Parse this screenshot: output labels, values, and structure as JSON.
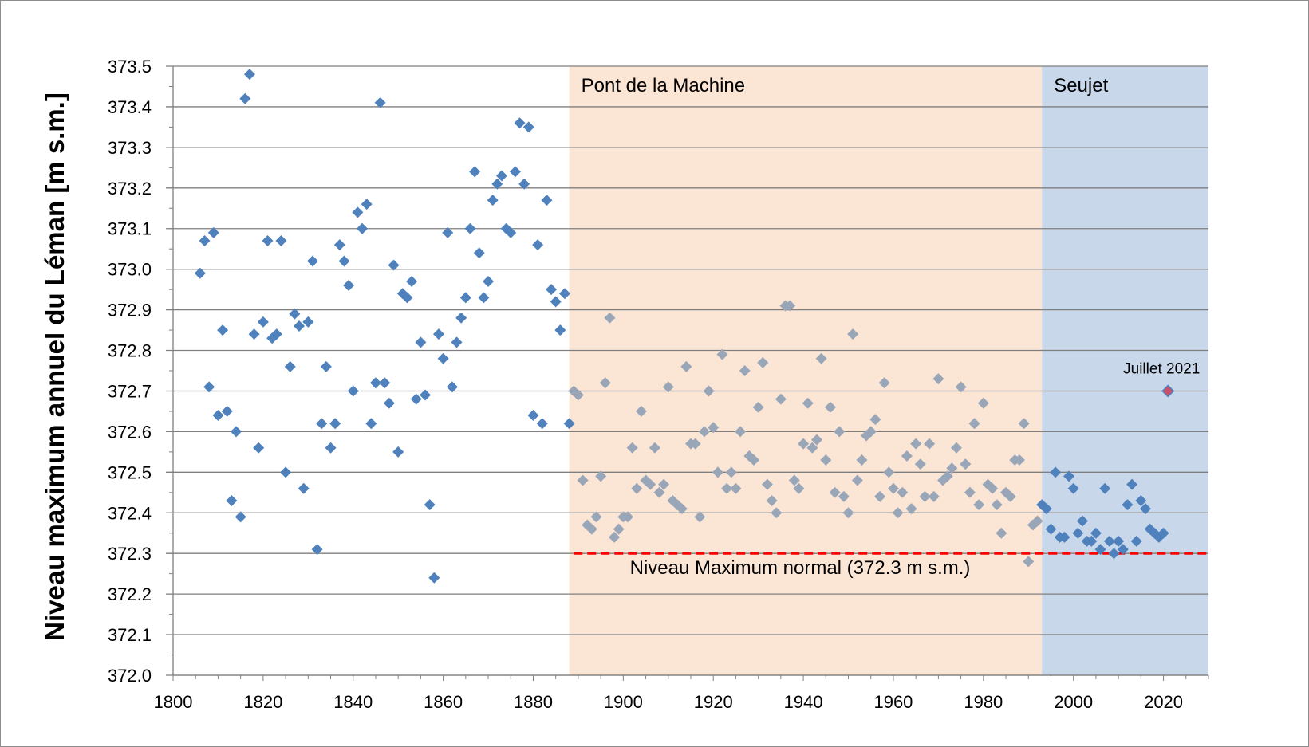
{
  "chart_data": {
    "type": "scatter",
    "title": "",
    "xlabel": "",
    "ylabel": "Niveau maximum annuel du Léman [m s.m.]",
    "xlim": [
      1800,
      2030
    ],
    "ylim": [
      372.0,
      373.5
    ],
    "x_ticks": [
      "1800",
      "1820",
      "1840",
      "1860",
      "1880",
      "1900",
      "1920",
      "1940",
      "1960",
      "1980",
      "2000",
      "2020"
    ],
    "y_ticks": [
      "372.0",
      "372.1",
      "372.2",
      "372.3",
      "372.4",
      "372.5",
      "372.6",
      "372.7",
      "372.8",
      "372.9",
      "373.0",
      "373.1",
      "373.2",
      "373.3",
      "373.4",
      "373.5"
    ],
    "grid": "horizontal",
    "regions": [
      {
        "label": "Pont de la Machine",
        "x_start": 1888,
        "x_end": 1993,
        "color": "#fbe5d5"
      },
      {
        "label": "Seujet",
        "x_start": 1993,
        "x_end": 2030,
        "color": "#c9d7ea"
      }
    ],
    "reference_line": {
      "y": 372.3,
      "label": "Niveau Maximum normal (372.3 m s.m.)",
      "color": "#ff0000",
      "x_start": 1889,
      "x_end": 2030
    },
    "annotation": {
      "text": "Juillet 2021",
      "x": 2021,
      "y": 372.7
    },
    "series": [
      {
        "color": "#4f81bd",
        "points": [
          [
            1806,
            372.99
          ],
          [
            1807,
            373.07
          ],
          [
            1808,
            372.71
          ],
          [
            1809,
            373.09
          ],
          [
            1810,
            372.64
          ],
          [
            1811,
            372.85
          ],
          [
            1812,
            372.65
          ],
          [
            1813,
            372.43
          ],
          [
            1814,
            372.6
          ],
          [
            1815,
            372.39
          ],
          [
            1816,
            373.42
          ],
          [
            1817,
            373.48
          ],
          [
            1818,
            372.84
          ],
          [
            1819,
            372.56
          ],
          [
            1820,
            372.87
          ],
          [
            1821,
            373.07
          ],
          [
            1822,
            372.83
          ],
          [
            1823,
            372.84
          ],
          [
            1824,
            373.07
          ],
          [
            1825,
            372.5
          ],
          [
            1826,
            372.76
          ],
          [
            1827,
            372.89
          ],
          [
            1828,
            372.86
          ],
          [
            1829,
            372.46
          ],
          [
            1830,
            372.87
          ],
          [
            1831,
            373.02
          ],
          [
            1832,
            372.31
          ],
          [
            1833,
            372.62
          ],
          [
            1834,
            372.76
          ],
          [
            1835,
            372.56
          ],
          [
            1836,
            372.62
          ],
          [
            1837,
            373.06
          ],
          [
            1838,
            373.02
          ],
          [
            1839,
            372.96
          ],
          [
            1840,
            372.7
          ],
          [
            1841,
            373.14
          ],
          [
            1842,
            373.1
          ],
          [
            1843,
            373.16
          ],
          [
            1844,
            372.62
          ],
          [
            1845,
            372.72
          ],
          [
            1846,
            373.41
          ],
          [
            1847,
            372.72
          ],
          [
            1848,
            372.67
          ],
          [
            1849,
            373.01
          ],
          [
            1850,
            372.55
          ],
          [
            1851,
            372.94
          ],
          [
            1852,
            372.93
          ],
          [
            1853,
            372.97
          ],
          [
            1854,
            372.68
          ],
          [
            1855,
            372.82
          ],
          [
            1856,
            372.69
          ],
          [
            1857,
            372.42
          ],
          [
            1858,
            372.24
          ],
          [
            1859,
            372.84
          ],
          [
            1860,
            372.78
          ],
          [
            1861,
            373.09
          ],
          [
            1862,
            372.71
          ],
          [
            1863,
            372.82
          ],
          [
            1864,
            372.88
          ],
          [
            1865,
            372.93
          ],
          [
            1866,
            373.1
          ],
          [
            1867,
            373.24
          ],
          [
            1868,
            373.04
          ],
          [
            1869,
            372.93
          ],
          [
            1870,
            372.97
          ],
          [
            1871,
            373.17
          ],
          [
            1872,
            373.21
          ],
          [
            1873,
            373.23
          ],
          [
            1874,
            373.1
          ],
          [
            1875,
            373.09
          ],
          [
            1876,
            373.24
          ],
          [
            1877,
            373.36
          ],
          [
            1878,
            373.21
          ],
          [
            1879,
            373.35
          ],
          [
            1880,
            372.64
          ],
          [
            1881,
            373.06
          ],
          [
            1882,
            372.62
          ],
          [
            1883,
            373.17
          ],
          [
            1884,
            372.95
          ],
          [
            1885,
            372.92
          ],
          [
            1886,
            372.85
          ],
          [
            1887,
            372.94
          ],
          [
            1888,
            372.62
          ]
        ]
      },
      {
        "color": "#98a6b8",
        "points": [
          [
            1889,
            372.7
          ],
          [
            1890,
            372.69
          ],
          [
            1891,
            372.48
          ],
          [
            1892,
            372.37
          ],
          [
            1893,
            372.36
          ],
          [
            1894,
            372.39
          ],
          [
            1895,
            372.49
          ],
          [
            1896,
            372.72
          ],
          [
            1897,
            372.88
          ],
          [
            1898,
            372.34
          ],
          [
            1899,
            372.36
          ],
          [
            1900,
            372.39
          ],
          [
            1901,
            372.39
          ],
          [
            1902,
            372.56
          ],
          [
            1903,
            372.46
          ],
          [
            1904,
            372.65
          ],
          [
            1905,
            372.48
          ],
          [
            1906,
            372.47
          ],
          [
            1907,
            372.56
          ],
          [
            1908,
            372.45
          ],
          [
            1909,
            372.47
          ],
          [
            1910,
            372.71
          ],
          [
            1911,
            372.43
          ],
          [
            1912,
            372.42
          ],
          [
            1913,
            372.41
          ],
          [
            1914,
            372.76
          ],
          [
            1915,
            372.57
          ],
          [
            1916,
            372.57
          ],
          [
            1917,
            372.39
          ],
          [
            1918,
            372.6
          ],
          [
            1919,
            372.7
          ],
          [
            1920,
            372.61
          ],
          [
            1921,
            372.5
          ],
          [
            1922,
            372.79
          ],
          [
            1923,
            372.46
          ],
          [
            1924,
            372.5
          ],
          [
            1925,
            372.46
          ],
          [
            1926,
            372.6
          ],
          [
            1927,
            372.75
          ],
          [
            1928,
            372.54
          ],
          [
            1929,
            372.53
          ],
          [
            1930,
            372.66
          ],
          [
            1931,
            372.77
          ],
          [
            1932,
            372.47
          ],
          [
            1933,
            372.43
          ],
          [
            1934,
            372.4
          ],
          [
            1935,
            372.68
          ],
          [
            1936,
            372.91
          ],
          [
            1937,
            372.91
          ],
          [
            1938,
            372.48
          ],
          [
            1939,
            372.46
          ],
          [
            1940,
            372.57
          ],
          [
            1941,
            372.67
          ],
          [
            1942,
            372.56
          ],
          [
            1943,
            372.58
          ],
          [
            1944,
            372.78
          ],
          [
            1945,
            372.53
          ],
          [
            1946,
            372.66
          ],
          [
            1947,
            372.45
          ],
          [
            1948,
            372.6
          ],
          [
            1949,
            372.44
          ],
          [
            1950,
            372.4
          ],
          [
            1951,
            372.84
          ],
          [
            1952,
            372.48
          ],
          [
            1953,
            372.53
          ],
          [
            1954,
            372.59
          ],
          [
            1955,
            372.6
          ],
          [
            1956,
            372.63
          ],
          [
            1957,
            372.44
          ],
          [
            1958,
            372.72
          ],
          [
            1959,
            372.5
          ],
          [
            1960,
            372.46
          ],
          [
            1961,
            372.4
          ],
          [
            1962,
            372.45
          ],
          [
            1963,
            372.54
          ],
          [
            1964,
            372.41
          ],
          [
            1965,
            372.57
          ],
          [
            1966,
            372.52
          ],
          [
            1967,
            372.44
          ],
          [
            1968,
            372.57
          ],
          [
            1969,
            372.44
          ],
          [
            1970,
            372.73
          ],
          [
            1971,
            372.48
          ],
          [
            1972,
            372.49
          ],
          [
            1973,
            372.51
          ],
          [
            1974,
            372.56
          ],
          [
            1975,
            372.71
          ],
          [
            1976,
            372.52
          ],
          [
            1977,
            372.45
          ],
          [
            1978,
            372.62
          ],
          [
            1979,
            372.42
          ],
          [
            1980,
            372.67
          ],
          [
            1981,
            372.47
          ],
          [
            1982,
            372.46
          ],
          [
            1983,
            372.42
          ],
          [
            1984,
            372.35
          ],
          [
            1985,
            372.45
          ],
          [
            1986,
            372.44
          ],
          [
            1987,
            372.53
          ],
          [
            1988,
            372.53
          ],
          [
            1989,
            372.62
          ],
          [
            1990,
            372.28
          ],
          [
            1991,
            372.37
          ],
          [
            1992,
            372.38
          ]
        ]
      },
      {
        "color": "#4f81bd",
        "points": [
          [
            1993,
            372.42
          ],
          [
            1994,
            372.41
          ],
          [
            1995,
            372.36
          ],
          [
            1996,
            372.5
          ],
          [
            1997,
            372.34
          ],
          [
            1998,
            372.34
          ],
          [
            1999,
            372.49
          ],
          [
            2000,
            372.46
          ],
          [
            2001,
            372.35
          ],
          [
            2002,
            372.38
          ],
          [
            2003,
            372.33
          ],
          [
            2004,
            372.33
          ],
          [
            2005,
            372.35
          ],
          [
            2006,
            372.31
          ],
          [
            2007,
            372.46
          ],
          [
            2008,
            372.33
          ],
          [
            2009,
            372.3
          ],
          [
            2010,
            372.33
          ],
          [
            2011,
            372.31
          ],
          [
            2012,
            372.42
          ],
          [
            2013,
            372.47
          ],
          [
            2014,
            372.33
          ],
          [
            2015,
            372.43
          ],
          [
            2016,
            372.41
          ],
          [
            2017,
            372.36
          ],
          [
            2018,
            372.35
          ],
          [
            2019,
            372.34
          ],
          [
            2020,
            372.35
          ]
        ]
      },
      {
        "color": "#c9506a",
        "points": [
          [
            2021,
            372.7
          ]
        ]
      }
    ]
  }
}
